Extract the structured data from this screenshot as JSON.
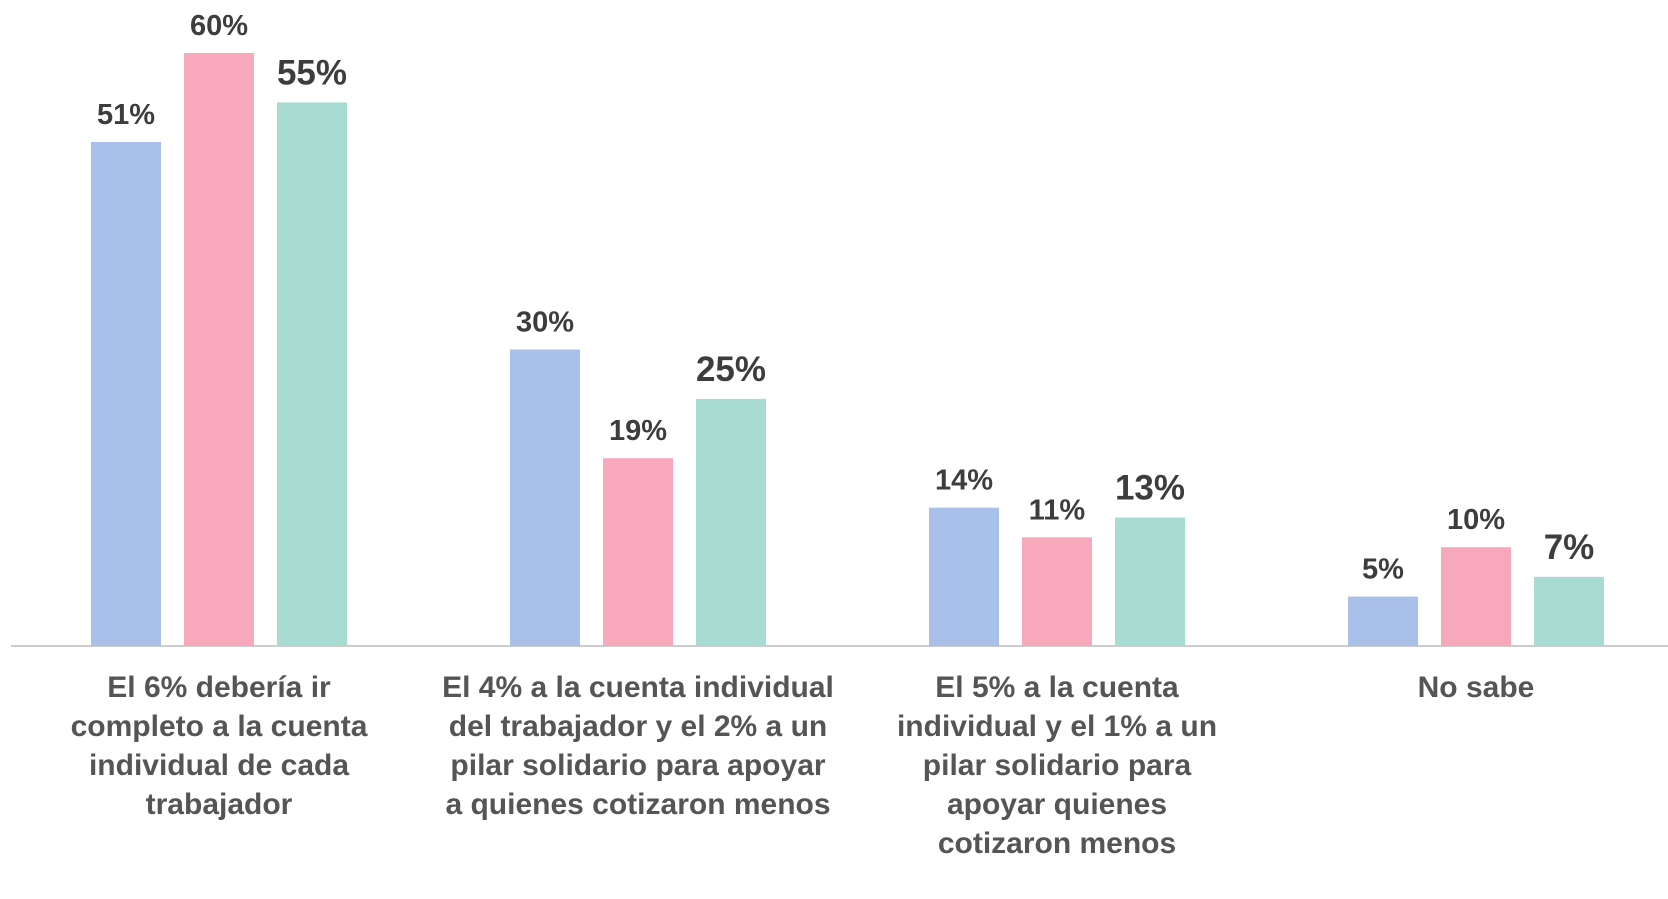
{
  "chart_data": {
    "type": "bar",
    "categories": [
      "El 6% debería ir completo a la cuenta individual de cada trabajador",
      "El 4% a la cuenta individual del trabajador y el 2% a un pilar solidario para apoyar a quienes cotizaron menos",
      "El 5% a la cuenta individual y el 1% a un pilar solidario para apoyar quienes cotizaron menos",
      "No sabe"
    ],
    "series": [
      {
        "color": "#a9c1e8",
        "values": [
          51,
          30,
          14,
          5
        ],
        "value_labels": [
          "51%",
          "30%",
          "14%",
          "5%"
        ]
      },
      {
        "color": "#f7a8bb",
        "values": [
          60,
          19,
          11,
          10
        ],
        "value_labels": [
          "60%",
          "19%",
          "11%",
          "10%"
        ]
      },
      {
        "color": "#a8dbd2",
        "values": [
          55,
          25,
          13,
          7
        ],
        "value_labels": [
          "55%",
          "25%",
          "13%",
          "7%"
        ]
      }
    ],
    "ylim": [
      0,
      60
    ]
  }
}
